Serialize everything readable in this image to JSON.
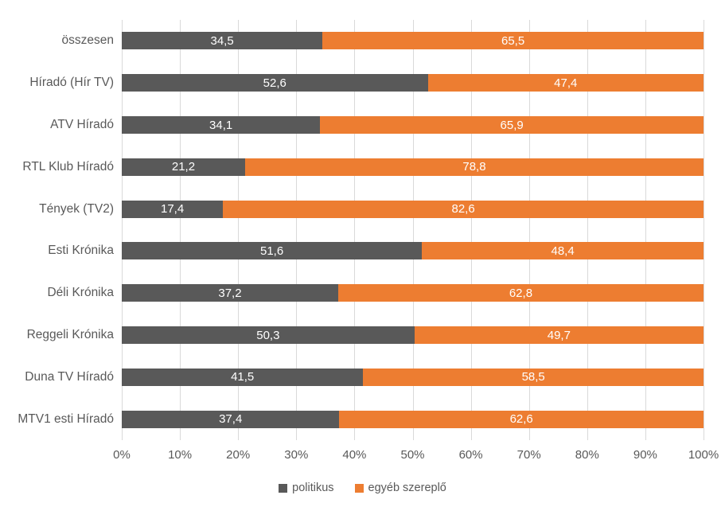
{
  "chart_data": {
    "type": "bar",
    "orientation": "horizontal",
    "stacked": true,
    "percent_stacked": true,
    "title": "",
    "categories": [
      "összesen",
      "Híradó (Hír TV)",
      "ATV Híradó",
      "RTL Klub Híradó",
      "Tények (TV2)",
      "Esti Krónika",
      "Déli Krónika",
      "Reggeli Krónika",
      "Duna TV Híradó",
      "MTV1 esti Híradó"
    ],
    "series": [
      {
        "name": "politikus",
        "color": "#595959",
        "values": [
          34.5,
          52.6,
          34.1,
          21.2,
          17.4,
          51.6,
          37.2,
          50.3,
          41.5,
          37.4
        ],
        "labels": [
          "34,5",
          "52,6",
          "34,1",
          "21,2",
          "17,4",
          "51,6",
          "37,2",
          "50,3",
          "41,5",
          "37,4"
        ]
      },
      {
        "name": "egyéb szereplő",
        "color": "#ED7D31",
        "values": [
          65.5,
          47.4,
          65.9,
          78.8,
          82.6,
          48.4,
          62.8,
          49.7,
          58.5,
          62.6
        ],
        "labels": [
          "65,5",
          "47,4",
          "65,9",
          "78,8",
          "82,6",
          "48,4",
          "62,8",
          "49,7",
          "58,5",
          "62,6"
        ]
      }
    ],
    "x_axis": {
      "min": 0,
      "max": 100,
      "tick_labels": [
        "0%",
        "10%",
        "20%",
        "30%",
        "40%",
        "50%",
        "60%",
        "70%",
        "80%",
        "90%",
        "100%"
      ]
    },
    "legend": {
      "position": "bottom",
      "entries": [
        {
          "label": "politikus",
          "color": "#595959"
        },
        {
          "label": "egyéb szereplő",
          "color": "#ED7D31"
        }
      ]
    },
    "grid": true,
    "gridline_color": "#d9d9d9",
    "axis_text_color": "#595959",
    "data_label_color": "#ffffff",
    "background_color": "#ffffff"
  }
}
